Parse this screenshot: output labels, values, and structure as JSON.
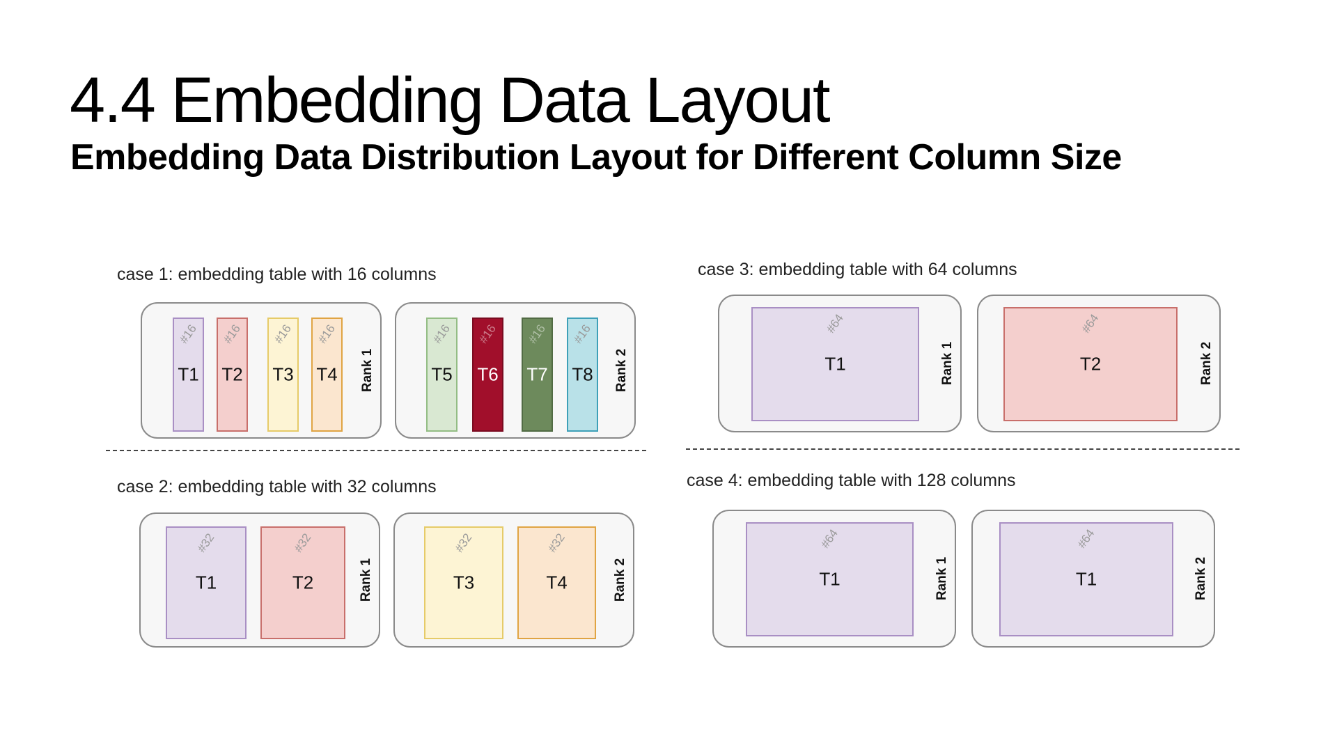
{
  "title": "4.4 Embedding Data Layout",
  "subtitle": "Embedding Data Distribution Layout for Different Column Size",
  "rank_labels": {
    "rank1": "Rank 1",
    "rank2": "Rank 2"
  },
  "cases": [
    {
      "label": "case 1: embedding table with 16 columns",
      "rank1": [
        {
          "name": "T1",
          "cols": "#16",
          "fill": "#e4dcec",
          "stroke": "#a98fc4"
        },
        {
          "name": "T2",
          "cols": "#16",
          "fill": "#f4cfcd",
          "stroke": "#c86f6b"
        },
        {
          "name": "T3",
          "cols": "#16",
          "fill": "#fdf4d4",
          "stroke": "#e6cb68"
        },
        {
          "name": "T4",
          "cols": "#16",
          "fill": "#fbe6cf",
          "stroke": "#e0a443"
        }
      ],
      "rank2": [
        {
          "name": "T5",
          "cols": "#16",
          "fill": "#d9e8d2",
          "stroke": "#93bd84"
        },
        {
          "name": "T6",
          "cols": "#16",
          "fill": "#a10f2b",
          "stroke": "#7a0b20"
        },
        {
          "name": "T7",
          "cols": "#16",
          "fill": "#6d8a5c",
          "stroke": "#516b44"
        },
        {
          "name": "T8",
          "cols": "#16",
          "fill": "#b9e1e8",
          "stroke": "#3ea0b8"
        }
      ]
    },
    {
      "label": "case 2: embedding table with 32 columns",
      "rank1": [
        {
          "name": "T1",
          "cols": "#32",
          "fill": "#e4dcec",
          "stroke": "#a98fc4"
        },
        {
          "name": "T2",
          "cols": "#32",
          "fill": "#f4cfcd",
          "stroke": "#c86f6b"
        }
      ],
      "rank2": [
        {
          "name": "T3",
          "cols": "#32",
          "fill": "#fdf4d4",
          "stroke": "#e6cb68"
        },
        {
          "name": "T4",
          "cols": "#32",
          "fill": "#fbe6cf",
          "stroke": "#e0a443"
        }
      ]
    },
    {
      "label": "case 3: embedding table with 64 columns",
      "rank1": [
        {
          "name": "T1",
          "cols": "#64",
          "fill": "#e4dcec",
          "stroke": "#a98fc4"
        }
      ],
      "rank2": [
        {
          "name": "T2",
          "cols": "#64",
          "fill": "#f4cfcd",
          "stroke": "#c86f6b"
        }
      ]
    },
    {
      "label": "case 4: embedding table with 128 columns",
      "rank1": [
        {
          "name": "T1",
          "cols": "#64",
          "fill": "#e4dcec",
          "stroke": "#a98fc4"
        }
      ],
      "rank2": [
        {
          "name": "T1",
          "cols": "#64",
          "fill": "#e4dcec",
          "stroke": "#a98fc4"
        }
      ]
    }
  ]
}
